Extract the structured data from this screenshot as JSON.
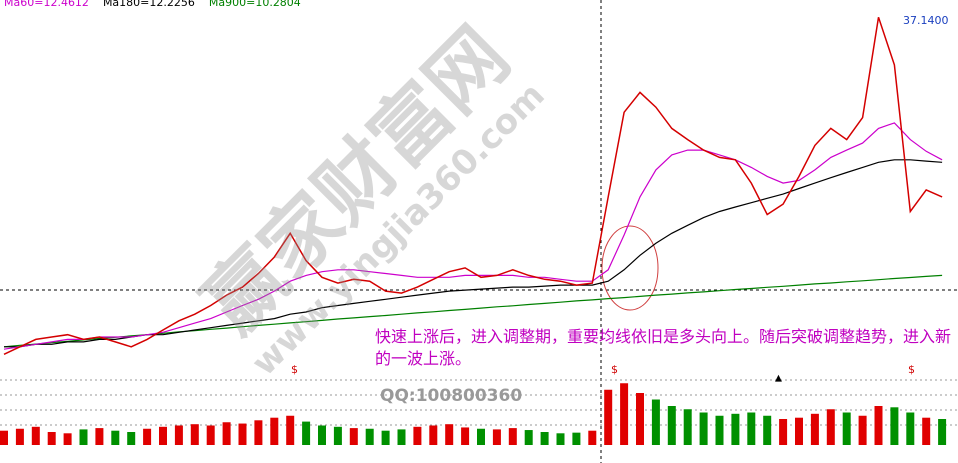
{
  "chart_data": {
    "type": "line",
    "log_scale": true,
    "categories": [
      null,
      null,
      null,
      null,
      null,
      null,
      null,
      null,
      null,
      null,
      null,
      null,
      null,
      null,
      null,
      null,
      null,
      null,
      null,
      null,
      null,
      null,
      null,
      null,
      null,
      null,
      null,
      null,
      null,
      null,
      null,
      null,
      null,
      null,
      null,
      null,
      null,
      null,
      null,
      null,
      null,
      null,
      null,
      null,
      null,
      null,
      null,
      null,
      null,
      null,
      null,
      null,
      null,
      null,
      null,
      null,
      null,
      null,
      null,
      null
    ],
    "price": {
      "color": "#d40000",
      "values": [
        10.6,
        10.9,
        11.2,
        11.3,
        11.4,
        11.2,
        11.3,
        11.1,
        10.9,
        11.2,
        11.6,
        12,
        12.3,
        12.7,
        13.2,
        13.6,
        14.3,
        15.2,
        16.6,
        15.0,
        14.1,
        13.8,
        14.0,
        13.9,
        13.4,
        13.3,
        13.6,
        14.0,
        14.4,
        14.6,
        14.1,
        14.2,
        14.5,
        14.2,
        14.0,
        13.9,
        13.7,
        13.8,
        19,
        26,
        28,
        26.5,
        24.5,
        23.5,
        22.6,
        22,
        21.8,
        20,
        17.8,
        18.5,
        20.5,
        23,
        24.5,
        23.5,
        25.5,
        37,
        31,
        18,
        19.5,
        19
      ]
    },
    "series": [
      {
        "name": "Ma60=12.4612",
        "color": "#cc00cc",
        "values": [
          10.8,
          10.9,
          11,
          11.1,
          11.2,
          11.2,
          11.3,
          11.3,
          11.3,
          11.4,
          11.5,
          11.7,
          11.9,
          12.1,
          12.4,
          12.7,
          13.0,
          13.4,
          13.9,
          14.2,
          14.4,
          14.5,
          14.5,
          14.4,
          14.3,
          14.2,
          14.1,
          14.1,
          14.1,
          14.2,
          14.2,
          14.2,
          14.2,
          14.1,
          14.1,
          14,
          13.9,
          13.9,
          14.5,
          16.5,
          19,
          21,
          22.2,
          22.6,
          22.6,
          22.2,
          21.8,
          21.2,
          20.5,
          20,
          20.2,
          21,
          22,
          22.6,
          23.2,
          24.5,
          25,
          23.5,
          22.5,
          21.8
        ]
      },
      {
        "name": "Ma180=12.2256",
        "color": "#000000",
        "values": [
          10.9,
          10.9,
          11,
          11,
          11.1,
          11.1,
          11.2,
          11.2,
          11.3,
          11.4,
          11.4,
          11.5,
          11.6,
          11.7,
          11.8,
          11.9,
          12,
          12.1,
          12.3,
          12.4,
          12.6,
          12.7,
          12.8,
          12.9,
          13,
          13.1,
          13.2,
          13.3,
          13.4,
          13.45,
          13.5,
          13.55,
          13.6,
          13.6,
          13.65,
          13.7,
          13.7,
          13.7,
          13.9,
          14.5,
          15.3,
          16,
          16.6,
          17.1,
          17.6,
          18,
          18.3,
          18.6,
          18.9,
          19.2,
          19.6,
          20,
          20.4,
          20.8,
          21.2,
          21.6,
          21.8,
          21.8,
          21.7,
          21.6
        ]
      },
      {
        "name": "Ma900=10.2804",
        "color": "#008000",
        "values": [
          10.9,
          10.96,
          11.01,
          11.07,
          11.12,
          11.18,
          11.24,
          11.29,
          11.35,
          11.4,
          11.46,
          11.52,
          11.57,
          11.63,
          11.68,
          11.74,
          11.8,
          11.85,
          11.91,
          11.96,
          12.02,
          12.08,
          12.13,
          12.19,
          12.24,
          12.3,
          12.36,
          12.41,
          12.47,
          12.52,
          12.58,
          12.64,
          12.69,
          12.75,
          12.8,
          12.86,
          12.92,
          12.97,
          13.03,
          13.08,
          13.14,
          13.2,
          13.25,
          13.31,
          13.36,
          13.42,
          13.48,
          13.53,
          13.59,
          13.64,
          13.7,
          13.76,
          13.81,
          13.87,
          13.92,
          13.98,
          14.04,
          14.09,
          14.15,
          14.2
        ]
      }
    ],
    "ylim": [
      10,
      38
    ],
    "volume": {
      "values": [
        22,
        25,
        28,
        20,
        18,
        24,
        26,
        22,
        20,
        25,
        28,
        30,
        32,
        30,
        35,
        33,
        38,
        42,
        45,
        36,
        30,
        28,
        26,
        25,
        22,
        24,
        28,
        30,
        32,
        27,
        25,
        24,
        26,
        23,
        20,
        18,
        19,
        22,
        85,
        95,
        80,
        70,
        60,
        55,
        50,
        45,
        48,
        50,
        45,
        40,
        42,
        48,
        55,
        50,
        45,
        60,
        58,
        50,
        42,
        40
      ],
      "ylim": [
        0,
        100
      ],
      "up_color": "#e00000",
      "down_color": "#009000"
    },
    "high_label": "37.1400",
    "annotation": "快速上涨后，进入调整期，重要均线依旧是多头向上。随后突破调整趋势，进入新的一波上涨。",
    "watermark": [
      "赢家财富网",
      "www.yingjia360.com"
    ],
    "contact": "QQ:100800360",
    "markers": [
      "$",
      "$",
      "$",
      "▲"
    ]
  }
}
